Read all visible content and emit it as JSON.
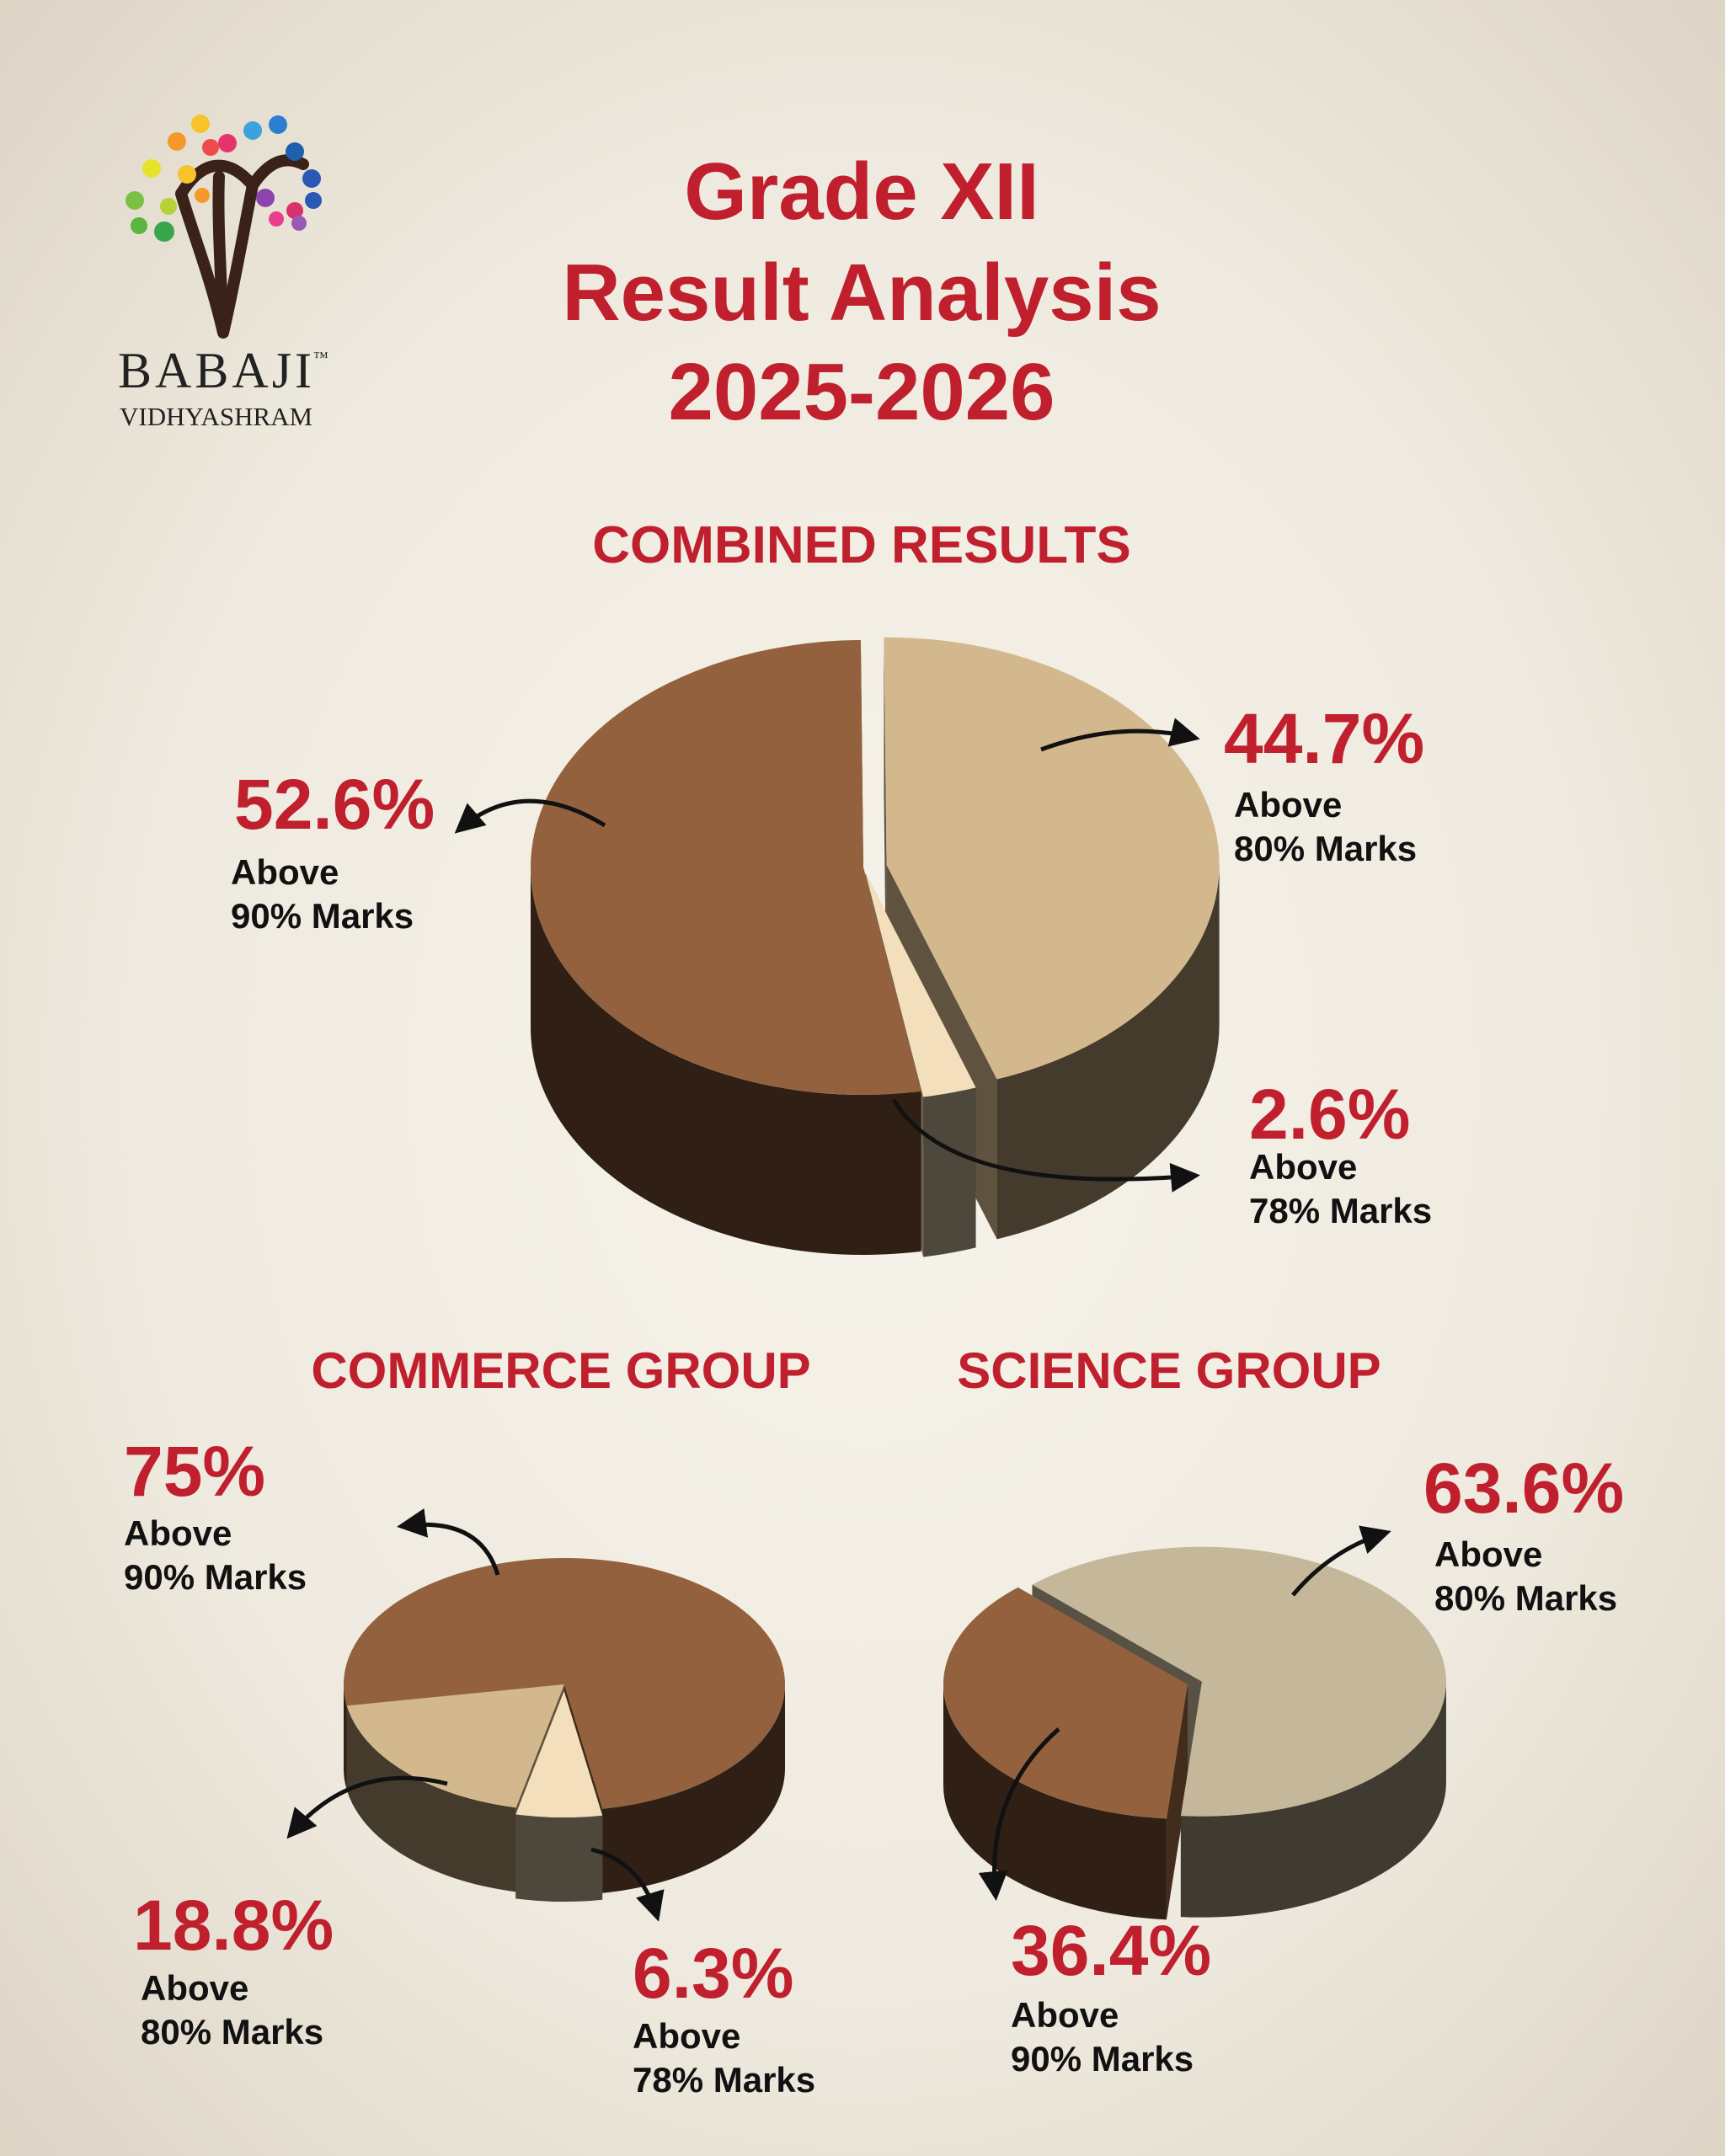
{
  "header": {
    "logo_name": "BABAJI",
    "logo_mark": "™",
    "logo_subtitle": "VIDHYASHRAM",
    "title": [
      "Grade XII",
      "Result Analysis",
      "2025-2026"
    ]
  },
  "chart_data": [
    {
      "type": "pie",
      "title": "COMBINED RESULTS",
      "categories": [
        "Above\n90% Marks",
        "Above\n80% Marks",
        "Above\n78% Marks"
      ],
      "values": [
        52.6,
        44.7,
        2.6
      ],
      "value_labels": [
        "52.6%",
        "44.7%",
        "2.6%"
      ],
      "colors": [
        "#93613d",
        "#d3b88d",
        "#f4dfbd"
      ]
    },
    {
      "type": "pie",
      "title": "COMMERCE GROUP",
      "categories": [
        "Above\n90% Marks",
        "Above\n80% Marks",
        "Above\n78% Marks"
      ],
      "values": [
        75,
        18.8,
        6.3
      ],
      "value_labels": [
        "75%",
        "18.8%",
        "6.3%"
      ],
      "colors": [
        "#93613d",
        "#d3b88d",
        "#f4dfbd"
      ]
    },
    {
      "type": "pie",
      "title": "SCIENCE GROUP",
      "categories": [
        "Above\n80% Marks",
        "Above\n90% Marks"
      ],
      "values": [
        63.6,
        36.4
      ],
      "value_labels": [
        "63.6%",
        "36.4%"
      ],
      "colors": [
        "#c4b79a",
        "#93613d"
      ]
    }
  ]
}
